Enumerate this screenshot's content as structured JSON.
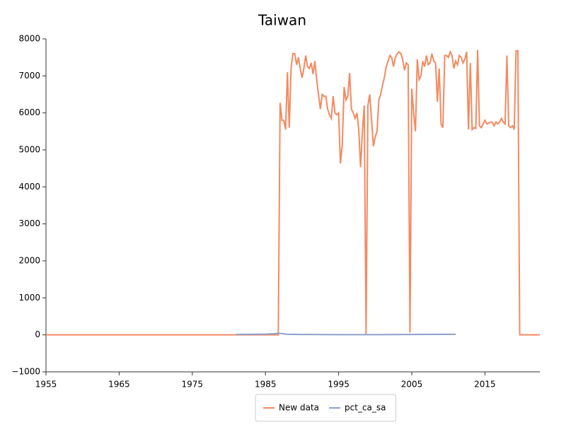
{
  "chart_data": {
    "type": "line",
    "title": "Taiwan",
    "xlim": [
      1955,
      2022.5
    ],
    "xticks": [
      1955,
      1965,
      1975,
      1985,
      1995,
      2005,
      2015
    ],
    "ylim": [
      -1000,
      8000
    ],
    "yticks": [
      {
        "value": -1000,
        "label": "−1000"
      },
      0,
      1000,
      2000,
      3000,
      4000,
      5000,
      6000,
      7000,
      8000
    ],
    "legend": "bottom",
    "series": [
      {
        "name": "New data",
        "color": "#f4895f",
        "x": [
          1955,
          1986.75,
          1987,
          1987.25,
          1987.5,
          1987.75,
          1988,
          1988.25,
          1988.5,
          1988.75,
          1989,
          1989.25,
          1989.5,
          1989.75,
          1990,
          1990.25,
          1990.5,
          1990.75,
          1991,
          1991.25,
          1991.5,
          1991.75,
          1992,
          1992.25,
          1992.5,
          1992.75,
          1993,
          1993.25,
          1993.5,
          1993.75,
          1994,
          1994.25,
          1994.5,
          1994.75,
          1995,
          1995.25,
          1995.5,
          1995.75,
          1996,
          1996.25,
          1996.5,
          1996.75,
          1997,
          1997.25,
          1997.5,
          1997.75,
          1998,
          1998.25,
          1998.5,
          1998.75,
          1999,
          1999.25,
          1999.5,
          1999.75,
          2000,
          2000.25,
          2000.5,
          2000.75,
          2001,
          2001.25,
          2001.5,
          2001.75,
          2002,
          2002.25,
          2002.5,
          2002.75,
          2003,
          2003.25,
          2003.5,
          2003.75,
          2004,
          2004.25,
          2004.5,
          2004.75,
          2005,
          2005.25,
          2005.5,
          2005.75,
          2006,
          2006.25,
          2006.5,
          2006.75,
          2007,
          2007.25,
          2007.5,
          2007.75,
          2008,
          2008.25,
          2008.5,
          2008.75,
          2009,
          2009.25,
          2009.5,
          2009.75,
          2010,
          2010.25,
          2010.5,
          2010.75,
          2011,
          2011.25,
          2011.5,
          2011.75,
          2012,
          2012.25,
          2012.5,
          2012.75,
          2013,
          2013.25,
          2013.5,
          2013.75,
          2014,
          2014.25,
          2014.5,
          2014.75,
          2015,
          2015.25,
          2015.5,
          2015.75,
          2016,
          2016.25,
          2016.5,
          2016.75,
          2017,
          2017.25,
          2017.5,
          2017.75,
          2018,
          2018.25,
          2018.5,
          2018.75,
          2019,
          2019.25,
          2019.5,
          2019.75,
          2022.5
        ],
        "values": [
          0,
          0,
          6270,
          5800,
          5800,
          5550,
          7100,
          5600,
          7200,
          7600,
          7600,
          7300,
          7500,
          7200,
          6950,
          7200,
          7550,
          7250,
          7200,
          7350,
          7050,
          7400,
          6900,
          6500,
          6100,
          6500,
          6450,
          6450,
          6100,
          5950,
          5850,
          6450,
          6000,
          5950,
          6000,
          4630,
          5150,
          6700,
          6350,
          6450,
          7080,
          6100,
          6000,
          5850,
          6000,
          5550,
          4530,
          5500,
          6200,
          0,
          6200,
          6500,
          5800,
          5100,
          5350,
          5500,
          6350,
          6500,
          6750,
          6950,
          7250,
          7400,
          7550,
          7500,
          7250,
          7500,
          7600,
          7650,
          7600,
          7450,
          7150,
          7350,
          7300,
          60,
          6650,
          6000,
          5500,
          7450,
          6900,
          7000,
          7400,
          7250,
          7550,
          7300,
          7350,
          7600,
          7400,
          7350,
          6300,
          7200,
          5700,
          5600,
          7550,
          7550,
          7500,
          7650,
          7550,
          7200,
          7400,
          7300,
          7550,
          7500,
          7350,
          7450,
          7650,
          5550,
          7350,
          5550,
          5600,
          5580,
          7700,
          5650,
          5600,
          5700,
          5800,
          5700,
          5720,
          5750,
          5750,
          5650,
          5750,
          5700,
          5750,
          5850,
          5750,
          5700,
          7550,
          5650,
          5600,
          5650,
          5550,
          7680,
          7680,
          0,
          0
        ]
      },
      {
        "name": "pct_ca_sa",
        "color": "#8da0cb",
        "x": [
          1981,
          1983,
          1985,
          1987,
          1988,
          1990,
          1995,
          2000,
          2005,
          2011
        ],
        "values": [
          10,
          15,
          20,
          40,
          15,
          10,
          5,
          5,
          10,
          15
        ]
      }
    ]
  }
}
